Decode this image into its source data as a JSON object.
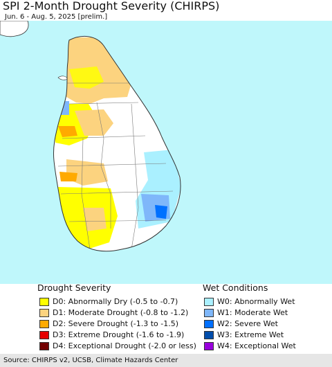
{
  "header": {
    "title": "SPI 2-Month Drought Severity (CHIRPS)",
    "subtitle": "Jun. 6 - Aug. 5, 2025 [prelim.]"
  },
  "map": {
    "ocean_color": "#bff7fb",
    "land_color": "#ffffff",
    "boundary_color": "#555555"
  },
  "legend": {
    "drought": {
      "title": "Drought Severity",
      "items": [
        {
          "code": "D0",
          "label": "D0: Abnormally Dry (-0.5 to -0.7)",
          "color": "#ffff00"
        },
        {
          "code": "D1",
          "label": "D1: Moderate Drought (-0.8 to -1.2)",
          "color": "#fcd37f"
        },
        {
          "code": "D2",
          "label": "D2: Severe Drought (-1.3 to -1.5)",
          "color": "#ffaa00"
        },
        {
          "code": "D3",
          "label": "D3: Extreme Drought (-1.6 to -1.9)",
          "color": "#e60000"
        },
        {
          "code": "D4",
          "label": "D4: Exceptional Drought (-2.0 or less)",
          "color": "#730000"
        }
      ]
    },
    "wet": {
      "title": "Wet Conditions",
      "items": [
        {
          "code": "W0",
          "label": "W0: Abnormally Wet",
          "color": "#aaf0ff"
        },
        {
          "code": "W1",
          "label": "W1: Moderate Wet",
          "color": "#7fb7fa"
        },
        {
          "code": "W2",
          "label": "W2: Severe Wet",
          "color": "#0070ff"
        },
        {
          "code": "W3",
          "label": "W3: Extreme Wet",
          "color": "#004dab"
        },
        {
          "code": "W4",
          "label": "W4: Exceptional Wet",
          "color": "#9900dd"
        }
      ]
    }
  },
  "footer": {
    "source": "Source: CHIRPS v2, UCSB, Climate Hazards Center"
  }
}
